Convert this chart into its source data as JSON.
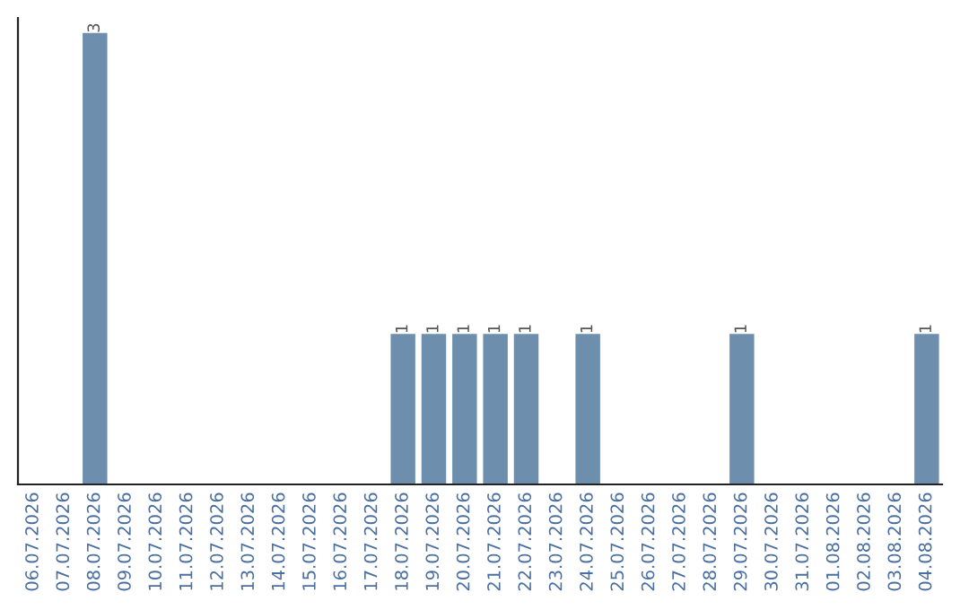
{
  "chart_data": {
    "type": "bar",
    "categories": [
      "06.07.2026",
      "07.07.2026",
      "08.07.2026",
      "09.07.2026",
      "10.07.2026",
      "11.07.2026",
      "12.07.2026",
      "13.07.2026",
      "14.07.2026",
      "15.07.2026",
      "16.07.2026",
      "17.07.2026",
      "18.07.2026",
      "19.07.2026",
      "20.07.2026",
      "21.07.2026",
      "22.07.2026",
      "23.07.2026",
      "24.07.2026",
      "25.07.2026",
      "26.07.2026",
      "27.07.2026",
      "28.07.2026",
      "29.07.2026",
      "30.07.2026",
      "31.07.2026",
      "01.08.2026",
      "02.08.2026",
      "03.08.2026",
      "04.08.2026"
    ],
    "values": [
      0,
      0,
      3,
      0,
      0,
      0,
      0,
      0,
      0,
      0,
      0,
      0,
      1,
      1,
      1,
      1,
      1,
      0,
      1,
      0,
      0,
      0,
      0,
      1,
      0,
      0,
      0,
      0,
      0,
      1
    ],
    "value_labels": [
      null,
      null,
      "3",
      null,
      null,
      null,
      null,
      null,
      null,
      null,
      null,
      null,
      "1",
      "1",
      "1",
      "1",
      "1",
      null,
      "1",
      null,
      null,
      null,
      null,
      "1",
      null,
      null,
      null,
      null,
      null,
      "1"
    ],
    "color": "#6d8fad",
    "ylim": [
      0,
      3.1
    ],
    "tick_labels": "x",
    "grid": false,
    "legend": false
  }
}
